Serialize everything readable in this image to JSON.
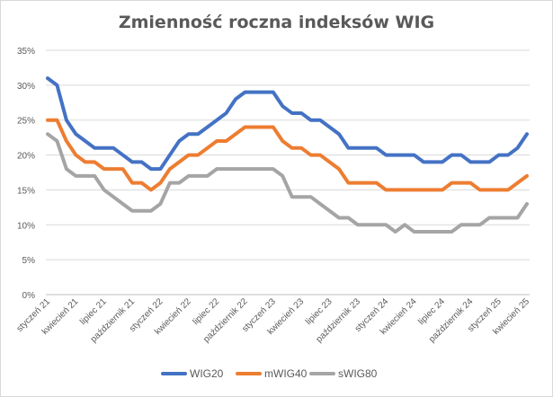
{
  "chart_data": {
    "type": "line",
    "title": "Zmienność roczna indeksów WIG",
    "xlabel": "",
    "ylabel": "",
    "ylim": [
      0,
      35
    ],
    "y_ticks": [
      "0%",
      "5%",
      "10%",
      "15%",
      "20%",
      "25%",
      "30%",
      "35%"
    ],
    "y_tick_values": [
      0,
      5,
      10,
      15,
      20,
      25,
      30,
      35
    ],
    "grid": "horizontal",
    "legend_position": "bottom",
    "x_tick_labels": [
      "styczeń 21",
      "kwiecień 21",
      "lipiec 21",
      "październik 21",
      "styczeń 22",
      "kwiecień 22",
      "lipiec 22",
      "październik 22",
      "styczeń 23",
      "kwiecień 23",
      "lipiec 23",
      "październik 23",
      "styczeń 24",
      "kwiecień 24",
      "lipiec 24",
      "październik 24",
      "styczeń 25",
      "kwiecień 25"
    ],
    "x_tick_positions": [
      0,
      3,
      6,
      9,
      12,
      15,
      18,
      21,
      24,
      27,
      30,
      33,
      36,
      39,
      42,
      45,
      48,
      51
    ],
    "n_points": 52,
    "series": [
      {
        "name": "WIG20",
        "color": "#4472C4",
        "values": [
          31,
          30,
          25,
          23,
          22,
          21,
          21,
          21,
          20,
          19,
          19,
          18,
          18,
          20,
          22,
          23,
          23,
          24,
          25,
          26,
          28,
          29,
          29,
          29,
          29,
          27,
          26,
          26,
          25,
          25,
          24,
          23,
          21,
          21,
          21,
          21,
          20,
          20,
          20,
          20,
          19,
          19,
          19,
          20,
          20,
          19,
          19,
          19,
          20,
          20,
          21,
          23
        ]
      },
      {
        "name": "mWIG40",
        "color": "#ED7D31",
        "values": [
          25,
          25,
          22,
          20,
          19,
          19,
          18,
          18,
          18,
          16,
          16,
          15,
          16,
          18,
          19,
          20,
          20,
          21,
          22,
          22,
          23,
          24,
          24,
          24,
          24,
          22,
          21,
          21,
          20,
          20,
          19,
          18,
          16,
          16,
          16,
          16,
          15,
          15,
          15,
          15,
          15,
          15,
          15,
          16,
          16,
          16,
          15,
          15,
          15,
          15,
          16,
          17
        ]
      },
      {
        "name": "sWIG80",
        "color": "#A5A5A5",
        "values": [
          23,
          22,
          18,
          17,
          17,
          17,
          15,
          14,
          13,
          12,
          12,
          12,
          13,
          16,
          16,
          17,
          17,
          17,
          18,
          18,
          18,
          18,
          18,
          18,
          18,
          17,
          14,
          14,
          14,
          13,
          12,
          11,
          11,
          10,
          10,
          10,
          10,
          9,
          10,
          9,
          9,
          9,
          9,
          9,
          10,
          10,
          10,
          11,
          11,
          11,
          11,
          13
        ]
      }
    ]
  }
}
